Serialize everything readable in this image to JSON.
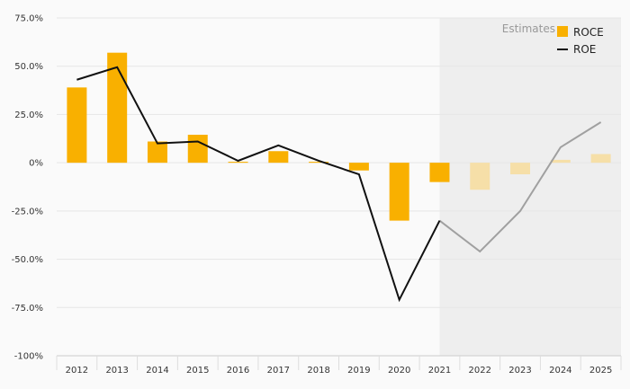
{
  "chart_data": {
    "type": "bar",
    "categories": [
      "2012",
      "2013",
      "2014",
      "2015",
      "2016",
      "2017",
      "2018",
      "2019",
      "2020",
      "2021",
      "2022",
      "2023",
      "2024",
      "2025"
    ],
    "series": [
      {
        "name": "ROCE",
        "kind": "bar",
        "values": [
          39,
          57,
          11,
          14.5,
          0.5,
          6,
          0.5,
          -4,
          -30,
          -10,
          -14,
          -6,
          1.5,
          4.5
        ]
      },
      {
        "name": "ROE",
        "kind": "line",
        "values": [
          43,
          49.5,
          10,
          11,
          1,
          9,
          1,
          -6,
          -71,
          -30,
          -46,
          -25,
          8,
          21
        ]
      }
    ],
    "estimates_from": "2021",
    "estimates_label": "Estimates",
    "y_ticks": [
      "75.0%",
      "50.0%",
      "25.0%",
      "0%",
      "-25.0%",
      "-50.0%",
      "-75.0%",
      "-100%"
    ],
    "ylim": [
      -100,
      75
    ],
    "legend_position": "top-right",
    "grid": true,
    "colors": {
      "bar": "#f9b000",
      "bar_estimate": "#f6dfa8",
      "line": "#111111",
      "line_estimate": "#a0a0a0",
      "estimate_bg": "#eeeeee",
      "grid": "#e6e6e6"
    }
  }
}
